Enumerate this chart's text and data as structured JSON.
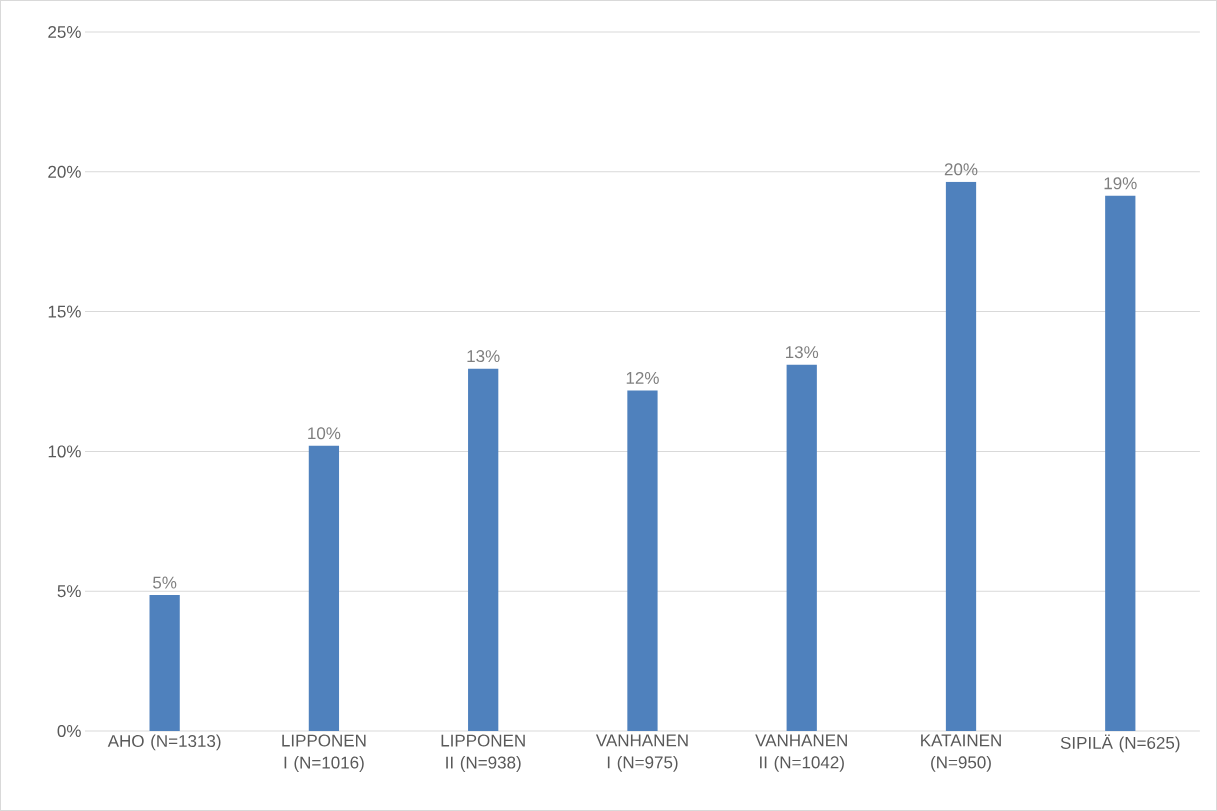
{
  "chart_data": {
    "type": "bar",
    "categories": [
      "AHO (N=1313)",
      "LIPPONEN I (N=1016)",
      "LIPPONEN II (N=938)",
      "VANHANEN I (N=975)",
      "VANHANEN II (N=1042)",
      "KATAINEN (N=950)",
      "SIPILÄ (N=625)"
    ],
    "values": [
      4.86,
      10.2,
      12.96,
      12.18,
      13.1,
      19.64,
      19.14
    ],
    "value_labels": [
      "5%",
      "10%",
      "13%",
      "12%",
      "13%",
      "20%",
      "19%"
    ],
    "color": "#4f81bd",
    "ylim": [
      0,
      25
    ],
    "yticks": [
      {
        "value": 0,
        "label": "0%"
      },
      {
        "value": 5,
        "label": "5%"
      },
      {
        "value": 10,
        "label": "10%"
      },
      {
        "value": 15,
        "label": "15%"
      },
      {
        "value": 20,
        "label": "20%"
      },
      {
        "value": 25,
        "label": "25%"
      }
    ],
    "grid": "y"
  }
}
